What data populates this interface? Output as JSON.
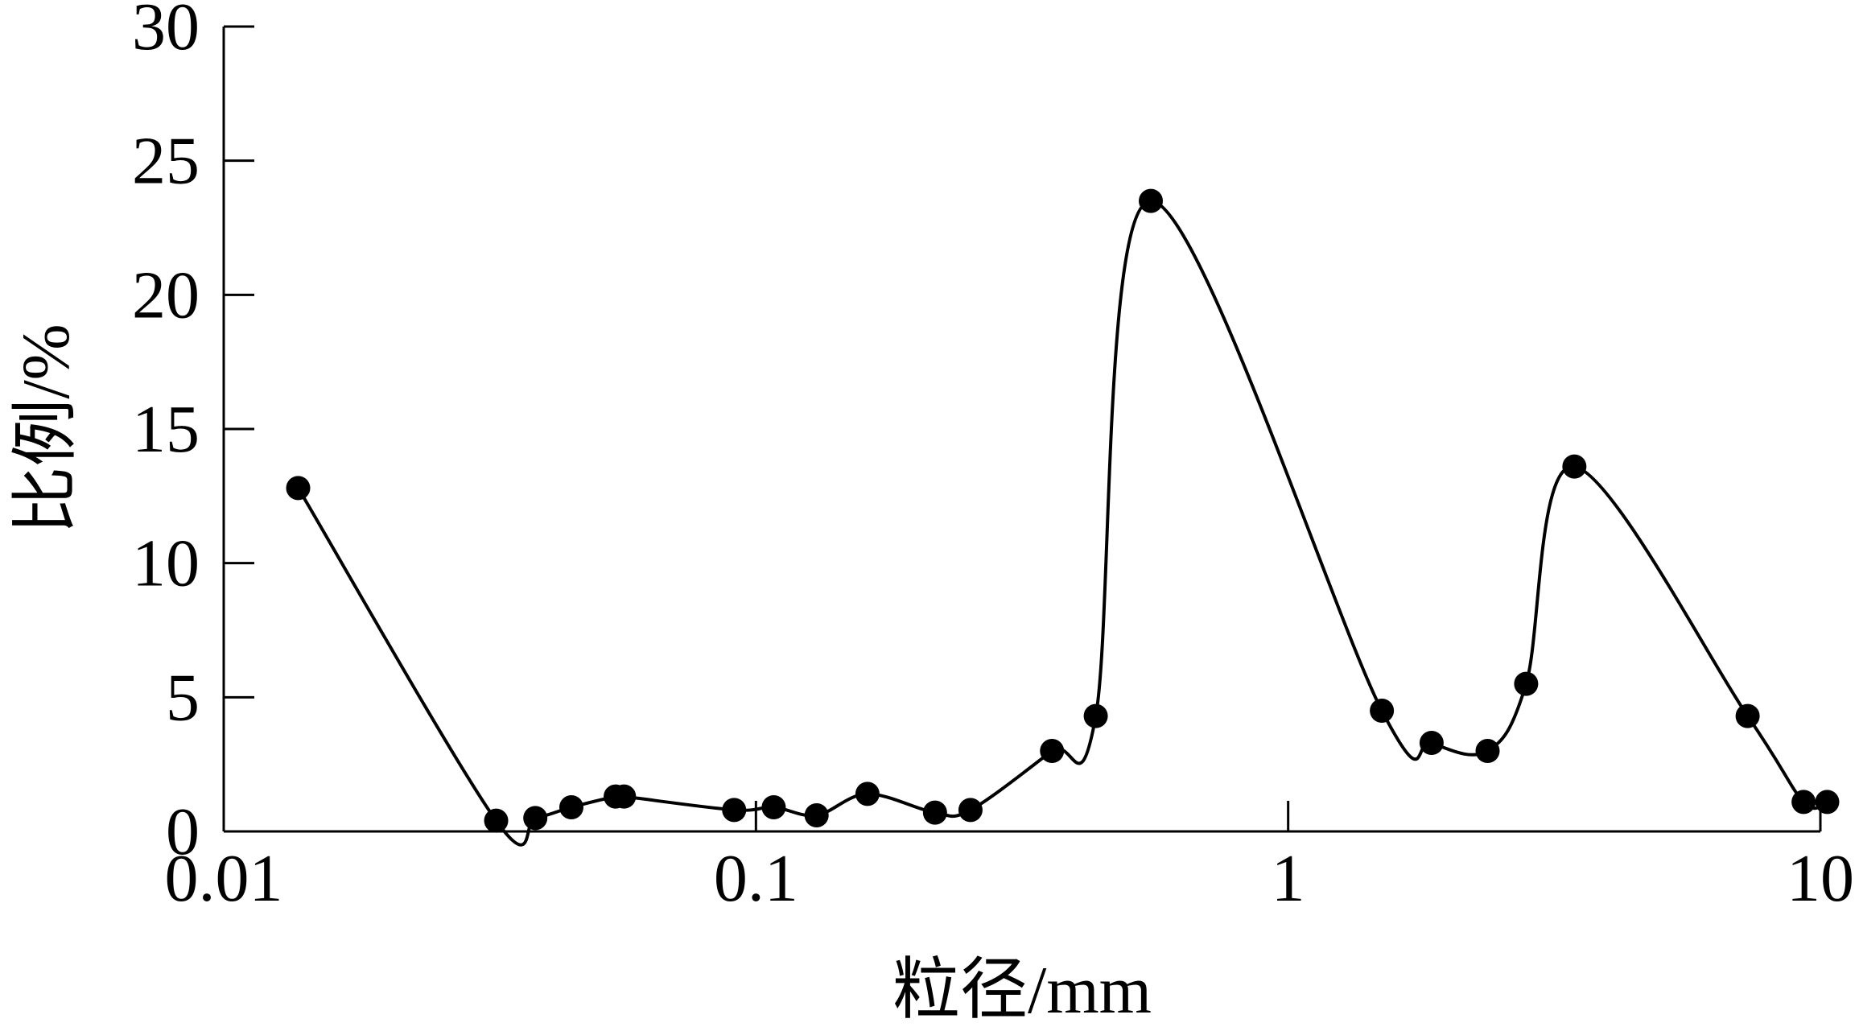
{
  "chart_data": {
    "type": "line",
    "title": "",
    "xlabel": "粒径/mm",
    "ylabel": "比例/%",
    "x_scale": "log",
    "xlim": [
      0.01,
      10
    ],
    "ylim": [
      0,
      30
    ],
    "x_ticks": [
      "0.01",
      "0.1",
      "1",
      "10"
    ],
    "y_ticks": [
      "0",
      "5",
      "10",
      "15",
      "20",
      "25",
      "30"
    ],
    "grid": false,
    "legend": "none",
    "line_color": "#000000",
    "marker_color": "#000000",
    "marker": "filled-circle",
    "series": [
      {
        "x": [
          0.0138,
          0.0325,
          0.0385,
          0.045,
          0.0545,
          0.0565,
          0.091,
          0.108,
          0.13,
          0.162,
          0.217,
          0.253,
          0.36,
          0.435,
          0.552,
          1.5,
          1.86,
          2.37,
          2.8,
          3.45,
          7.3,
          9.3,
          10.3
        ],
        "y": [
          12.8,
          0.4,
          0.5,
          0.9,
          1.3,
          1.3,
          0.8,
          0.9,
          0.6,
          1.4,
          0.7,
          0.8,
          3.0,
          4.3,
          23.5,
          4.5,
          3.3,
          3.0,
          5.5,
          13.6,
          4.3,
          1.1,
          1.1
        ]
      }
    ]
  }
}
